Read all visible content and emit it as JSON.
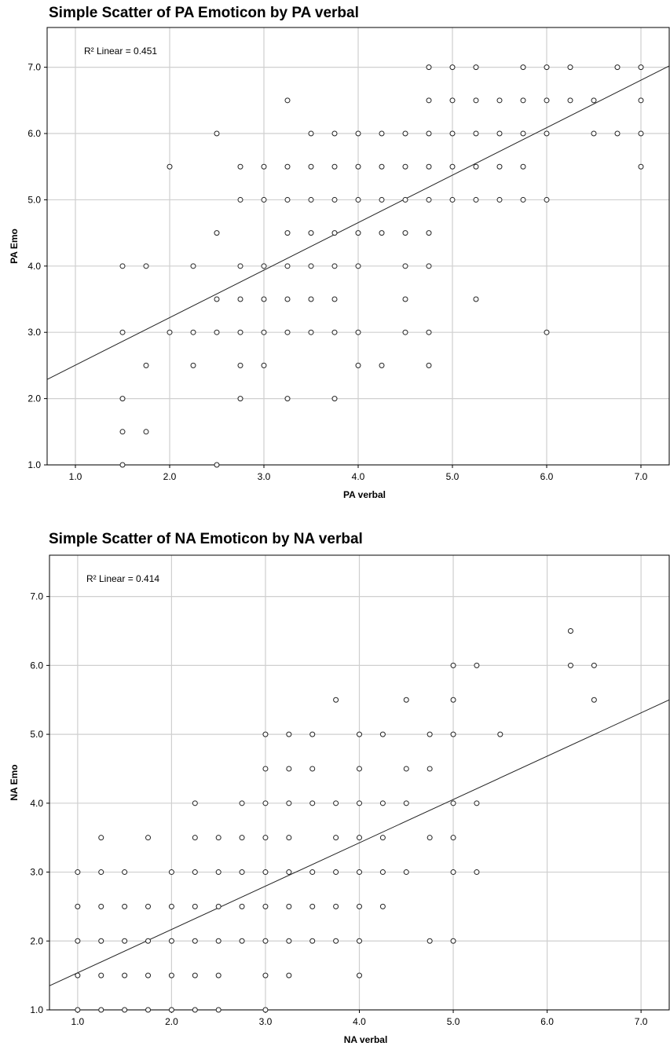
{
  "chart_data": [
    {
      "type": "scatter",
      "title": "Simple Scatter of PA Emoticon by PA verbal",
      "xlabel": "PA verbal",
      "ylabel": "PA Emo",
      "xlim": [
        0.7,
        7.3
      ],
      "ylim": [
        1.0,
        7.6
      ],
      "xticks": [
        "1.0",
        "2.0",
        "3.0",
        "4.0",
        "5.0",
        "6.0",
        "7.0"
      ],
      "yticks": [
        "1.0",
        "2.0",
        "3.0",
        "4.0",
        "5.0",
        "6.0",
        "7.0"
      ],
      "grid": true,
      "annotation": "R² Linear = 0.451",
      "fit_line": [
        [
          0.7,
          2.29
        ],
        [
          7.3,
          7.02
        ]
      ],
      "points": [
        [
          1.5,
          1.0
        ],
        [
          1.5,
          1.5
        ],
        [
          1.5,
          2.0
        ],
        [
          1.5,
          3.0
        ],
        [
          1.5,
          4.0
        ],
        [
          1.75,
          1.5
        ],
        [
          1.75,
          2.5
        ],
        [
          1.75,
          4.0
        ],
        [
          2.0,
          3.0
        ],
        [
          2.0,
          5.5
        ],
        [
          2.25,
          2.5
        ],
        [
          2.25,
          3.0
        ],
        [
          2.25,
          4.0
        ],
        [
          2.5,
          1.0
        ],
        [
          2.5,
          3.0
        ],
        [
          2.5,
          3.5
        ],
        [
          2.5,
          4.5
        ],
        [
          2.5,
          6.0
        ],
        [
          2.75,
          2.0
        ],
        [
          2.75,
          2.5
        ],
        [
          2.75,
          3.0
        ],
        [
          2.75,
          3.5
        ],
        [
          2.75,
          4.0
        ],
        [
          2.75,
          5.0
        ],
        [
          2.75,
          5.5
        ],
        [
          3.0,
          2.5
        ],
        [
          3.0,
          3.0
        ],
        [
          3.0,
          3.5
        ],
        [
          3.0,
          4.0
        ],
        [
          3.0,
          5.0
        ],
        [
          3.0,
          5.5
        ],
        [
          3.25,
          2.0
        ],
        [
          3.25,
          3.0
        ],
        [
          3.25,
          3.5
        ],
        [
          3.25,
          4.0
        ],
        [
          3.25,
          4.5
        ],
        [
          3.25,
          5.0
        ],
        [
          3.25,
          5.5
        ],
        [
          3.25,
          6.5
        ],
        [
          3.5,
          3.0
        ],
        [
          3.5,
          3.5
        ],
        [
          3.5,
          4.0
        ],
        [
          3.5,
          4.5
        ],
        [
          3.5,
          5.0
        ],
        [
          3.5,
          5.5
        ],
        [
          3.5,
          6.0
        ],
        [
          3.75,
          2.0
        ],
        [
          3.75,
          3.0
        ],
        [
          3.75,
          3.5
        ],
        [
          3.75,
          4.0
        ],
        [
          3.75,
          4.5
        ],
        [
          3.75,
          5.0
        ],
        [
          3.75,
          5.5
        ],
        [
          3.75,
          6.0
        ],
        [
          4.0,
          2.5
        ],
        [
          4.0,
          3.0
        ],
        [
          4.0,
          4.0
        ],
        [
          4.0,
          4.5
        ],
        [
          4.0,
          5.0
        ],
        [
          4.0,
          5.5
        ],
        [
          4.0,
          6.0
        ],
        [
          4.25,
          2.5
        ],
        [
          4.25,
          4.5
        ],
        [
          4.25,
          5.0
        ],
        [
          4.25,
          5.5
        ],
        [
          4.25,
          6.0
        ],
        [
          4.5,
          3.0
        ],
        [
          4.5,
          3.5
        ],
        [
          4.5,
          4.0
        ],
        [
          4.5,
          4.5
        ],
        [
          4.5,
          5.0
        ],
        [
          4.5,
          5.5
        ],
        [
          4.5,
          6.0
        ],
        [
          4.75,
          2.5
        ],
        [
          4.75,
          3.0
        ],
        [
          4.75,
          4.0
        ],
        [
          4.75,
          4.5
        ],
        [
          4.75,
          5.0
        ],
        [
          4.75,
          5.5
        ],
        [
          4.75,
          6.0
        ],
        [
          4.75,
          6.5
        ],
        [
          4.75,
          7.0
        ],
        [
          5.0,
          5.0
        ],
        [
          5.0,
          5.5
        ],
        [
          5.0,
          6.0
        ],
        [
          5.0,
          6.5
        ],
        [
          5.0,
          7.0
        ],
        [
          5.25,
          3.5
        ],
        [
          5.25,
          5.0
        ],
        [
          5.25,
          5.5
        ],
        [
          5.25,
          6.0
        ],
        [
          5.25,
          6.5
        ],
        [
          5.25,
          7.0
        ],
        [
          5.5,
          5.0
        ],
        [
          5.5,
          5.5
        ],
        [
          5.5,
          6.0
        ],
        [
          5.5,
          6.5
        ],
        [
          5.75,
          5.0
        ],
        [
          5.75,
          5.5
        ],
        [
          5.75,
          6.0
        ],
        [
          5.75,
          6.5
        ],
        [
          5.75,
          7.0
        ],
        [
          6.0,
          3.0
        ],
        [
          6.0,
          5.0
        ],
        [
          6.0,
          6.0
        ],
        [
          6.0,
          6.5
        ],
        [
          6.0,
          7.0
        ],
        [
          6.25,
          6.5
        ],
        [
          6.25,
          7.0
        ],
        [
          6.5,
          6.0
        ],
        [
          6.5,
          6.5
        ],
        [
          6.75,
          6.0
        ],
        [
          6.75,
          7.0
        ],
        [
          7.0,
          5.5
        ],
        [
          7.0,
          6.0
        ],
        [
          7.0,
          6.5
        ],
        [
          7.0,
          7.0
        ]
      ]
    },
    {
      "type": "scatter",
      "title": "Simple Scatter of NA Emoticon by NA verbal",
      "xlabel": "NA verbal",
      "ylabel": "NA Emo",
      "xlim": [
        0.7,
        7.3
      ],
      "ylim": [
        1.0,
        7.6
      ],
      "xticks": [
        "1.0",
        "2.0",
        "3.0",
        "4.0",
        "5.0",
        "6.0",
        "7.0"
      ],
      "yticks": [
        "1.0",
        "2.0",
        "3.0",
        "4.0",
        "5.0",
        "6.0",
        "7.0"
      ],
      "grid": true,
      "annotation": "R² Linear = 0.414",
      "fit_line": [
        [
          0.7,
          1.35
        ],
        [
          7.3,
          5.5
        ]
      ],
      "points": [
        [
          1.0,
          1.0
        ],
        [
          1.0,
          1.5
        ],
        [
          1.0,
          2.0
        ],
        [
          1.0,
          2.5
        ],
        [
          1.0,
          3.0
        ],
        [
          1.25,
          1.0
        ],
        [
          1.25,
          1.5
        ],
        [
          1.25,
          2.0
        ],
        [
          1.25,
          2.5
        ],
        [
          1.25,
          3.0
        ],
        [
          1.25,
          3.5
        ],
        [
          1.5,
          1.0
        ],
        [
          1.5,
          1.5
        ],
        [
          1.5,
          2.0
        ],
        [
          1.5,
          2.5
        ],
        [
          1.5,
          3.0
        ],
        [
          1.75,
          1.0
        ],
        [
          1.75,
          1.5
        ],
        [
          1.75,
          2.0
        ],
        [
          1.75,
          2.5
        ],
        [
          1.75,
          3.5
        ],
        [
          2.0,
          1.0
        ],
        [
          2.0,
          1.5
        ],
        [
          2.0,
          2.0
        ],
        [
          2.0,
          2.5
        ],
        [
          2.0,
          3.0
        ],
        [
          2.25,
          1.0
        ],
        [
          2.25,
          1.5
        ],
        [
          2.25,
          2.0
        ],
        [
          2.25,
          2.5
        ],
        [
          2.25,
          3.0
        ],
        [
          2.25,
          3.5
        ],
        [
          2.25,
          4.0
        ],
        [
          2.5,
          1.0
        ],
        [
          2.5,
          1.5
        ],
        [
          2.5,
          2.0
        ],
        [
          2.5,
          2.5
        ],
        [
          2.5,
          3.0
        ],
        [
          2.5,
          3.5
        ],
        [
          2.75,
          2.0
        ],
        [
          2.75,
          2.5
        ],
        [
          2.75,
          3.0
        ],
        [
          2.75,
          3.5
        ],
        [
          2.75,
          4.0
        ],
        [
          3.0,
          1.0
        ],
        [
          3.0,
          1.5
        ],
        [
          3.0,
          2.0
        ],
        [
          3.0,
          2.5
        ],
        [
          3.0,
          3.0
        ],
        [
          3.0,
          3.5
        ],
        [
          3.0,
          4.0
        ],
        [
          3.0,
          4.5
        ],
        [
          3.0,
          5.0
        ],
        [
          3.25,
          1.5
        ],
        [
          3.25,
          2.0
        ],
        [
          3.25,
          2.5
        ],
        [
          3.25,
          3.0
        ],
        [
          3.25,
          3.5
        ],
        [
          3.25,
          4.0
        ],
        [
          3.25,
          4.5
        ],
        [
          3.25,
          5.0
        ],
        [
          3.5,
          2.0
        ],
        [
          3.5,
          2.5
        ],
        [
          3.5,
          3.0
        ],
        [
          3.5,
          4.0
        ],
        [
          3.5,
          4.5
        ],
        [
          3.5,
          5.0
        ],
        [
          3.75,
          2.0
        ],
        [
          3.75,
          2.5
        ],
        [
          3.75,
          3.0
        ],
        [
          3.75,
          3.5
        ],
        [
          3.75,
          4.0
        ],
        [
          3.75,
          5.5
        ],
        [
          4.0,
          1.5
        ],
        [
          4.0,
          2.0
        ],
        [
          4.0,
          2.5
        ],
        [
          4.0,
          3.0
        ],
        [
          4.0,
          3.5
        ],
        [
          4.0,
          4.0
        ],
        [
          4.0,
          4.5
        ],
        [
          4.0,
          5.0
        ],
        [
          4.25,
          2.5
        ],
        [
          4.25,
          3.0
        ],
        [
          4.25,
          3.5
        ],
        [
          4.25,
          4.0
        ],
        [
          4.25,
          5.0
        ],
        [
          4.5,
          3.0
        ],
        [
          4.5,
          4.0
        ],
        [
          4.5,
          4.5
        ],
        [
          4.5,
          5.5
        ],
        [
          4.75,
          2.0
        ],
        [
          4.75,
          3.5
        ],
        [
          4.75,
          4.5
        ],
        [
          4.75,
          5.0
        ],
        [
          5.0,
          2.0
        ],
        [
          5.0,
          3.0
        ],
        [
          5.0,
          3.5
        ],
        [
          5.0,
          4.0
        ],
        [
          5.0,
          5.0
        ],
        [
          5.0,
          5.5
        ],
        [
          5.0,
          6.0
        ],
        [
          5.25,
          3.0
        ],
        [
          5.25,
          4.0
        ],
        [
          5.25,
          6.0
        ],
        [
          5.5,
          5.0
        ],
        [
          6.25,
          6.0
        ],
        [
          6.25,
          6.5
        ],
        [
          6.5,
          5.5
        ],
        [
          6.5,
          6.0
        ]
      ]
    }
  ]
}
